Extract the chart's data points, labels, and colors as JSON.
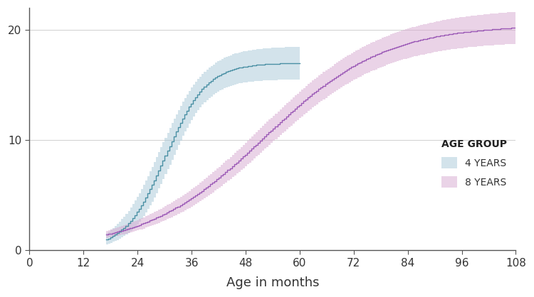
{
  "xlabel": "Age in months",
  "xlim": [
    0,
    108
  ],
  "ylim": [
    0,
    22
  ],
  "xticks": [
    0,
    12,
    24,
    36,
    48,
    60,
    72,
    84,
    96,
    108
  ],
  "yticks": [
    0,
    10,
    20
  ],
  "background_color": "#ffffff",
  "grid_color": "#d0d0d0",
  "age4_line_color": "#4a90a4",
  "age4_fill_color": "#a8c8d8",
  "age8_line_color": "#9b59b6",
  "age8_fill_color": "#d7a8d0",
  "legend_title": "AGE GROUP",
  "legend_label_4": "4 YEARS",
  "legend_label_8": "8 YEARS",
  "age4_fill_alpha": 0.5,
  "age8_fill_alpha": 0.5
}
